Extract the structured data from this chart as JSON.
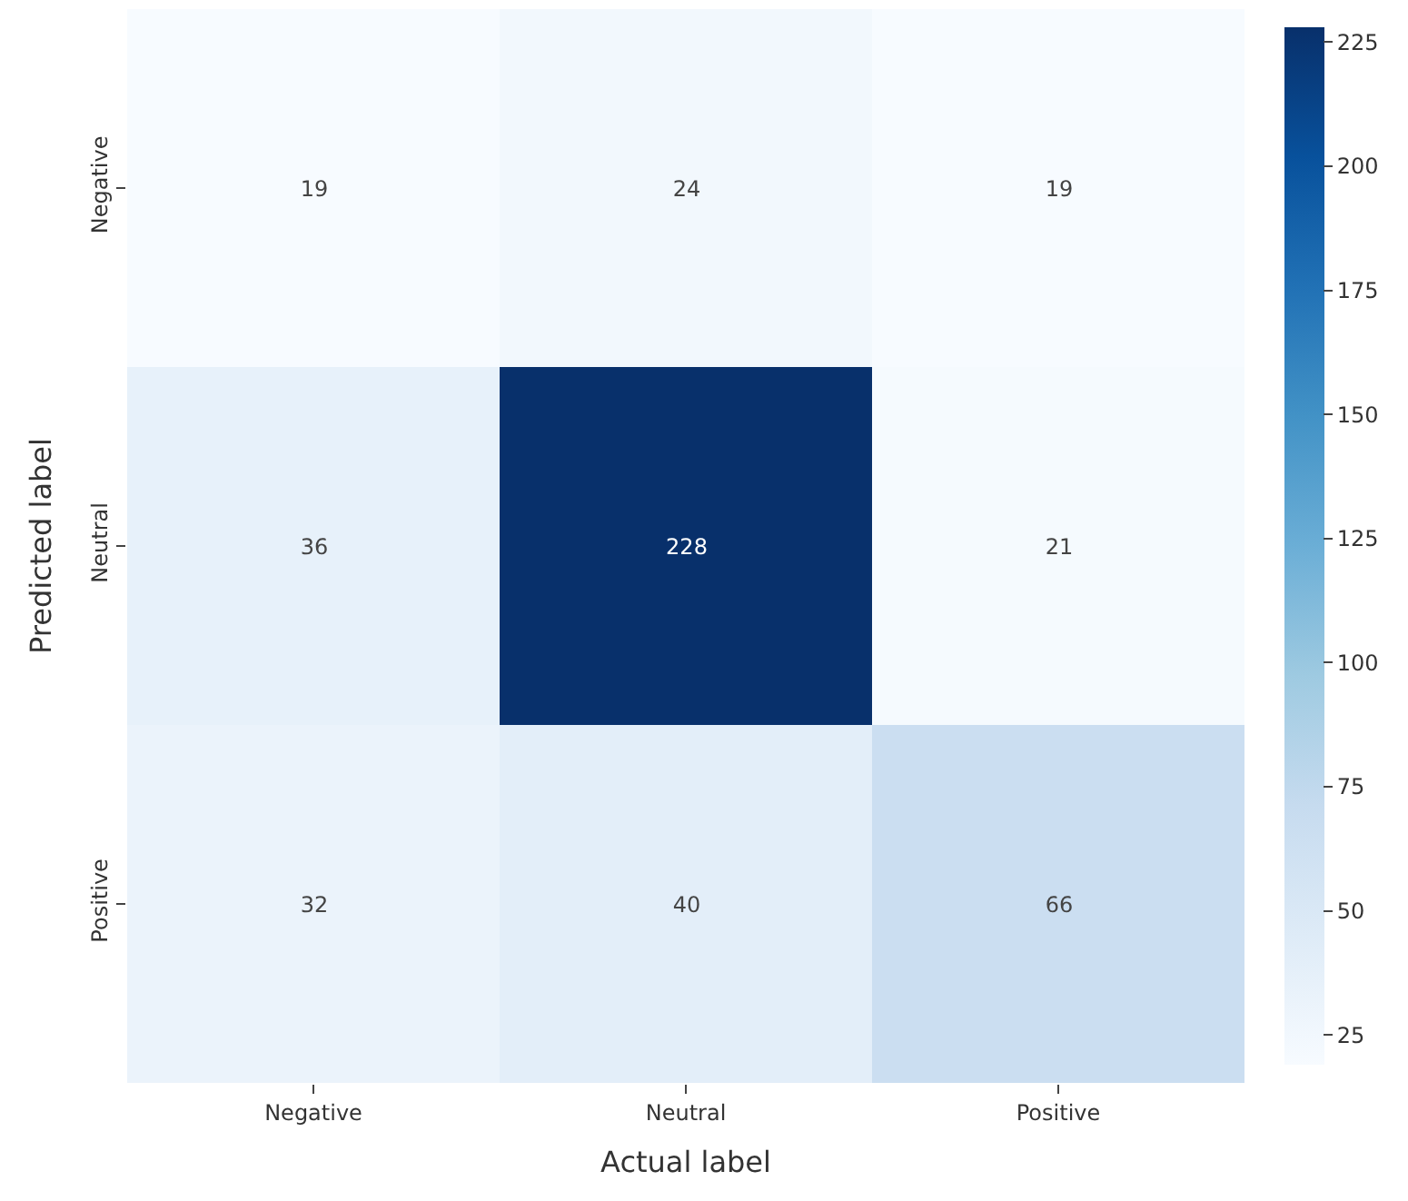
{
  "chart_data": {
    "type": "heatmap",
    "xlabel": "Actual label",
    "ylabel": "Predicted label",
    "categories": [
      "Negative",
      "Neutral",
      "Positive"
    ],
    "y_categories": [
      "Negative",
      "Neutral",
      "Positive"
    ],
    "cells": [
      [
        19,
        24,
        19
      ],
      [
        36,
        228,
        21
      ],
      [
        32,
        40,
        66
      ]
    ],
    "clim": [
      19,
      228
    ],
    "cticks": [
      25,
      50,
      75,
      100,
      125,
      150,
      175,
      200,
      225
    ],
    "data_labels": true
  }
}
